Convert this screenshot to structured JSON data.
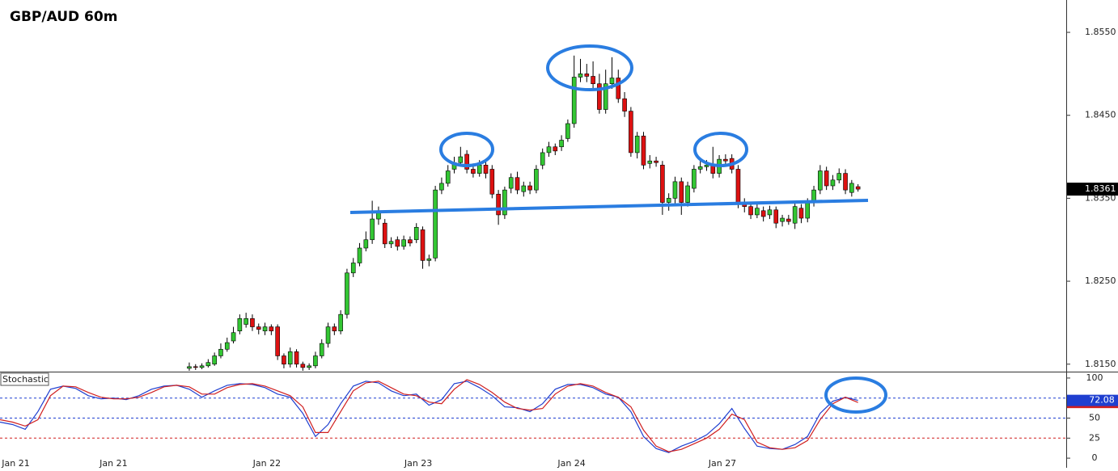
{
  "chart_data": [
    {
      "type": "candlestick",
      "title": "GBP/AUD 60m",
      "xlim": [
        0,
        169
      ],
      "ylim": [
        1.8141,
        1.8589
      ],
      "yticks": [
        {
          "value": 1.855,
          "label": "1.8550"
        },
        {
          "value": 1.845,
          "label": "1.8450"
        },
        {
          "value": 1.835,
          "label": "1.8350"
        },
        {
          "value": 1.825,
          "label": "1.8250"
        },
        {
          "value": 1.815,
          "label": "1.8150"
        }
      ],
      "up_color": "#33c633",
      "down_color": "#dd1111",
      "outline_color": "#000000",
      "last_price": 1.8361,
      "x": [
        30,
        31,
        32,
        33,
        34,
        35,
        36,
        37,
        38,
        39,
        40,
        41,
        42,
        43,
        44,
        45,
        46,
        47,
        48,
        49,
        50,
        51,
        52,
        53,
        54,
        55,
        56,
        57,
        58,
        59,
        60,
        61,
        62,
        63,
        64,
        65,
        66,
        67,
        68,
        69,
        70,
        71,
        72,
        73,
        74,
        75,
        76,
        77,
        78,
        79,
        80,
        81,
        82,
        83,
        84,
        85,
        86,
        87,
        88,
        89,
        90,
        91,
        92,
        93,
        94,
        95,
        96,
        97,
        98,
        99,
        100,
        101,
        102,
        103,
        104,
        105,
        106,
        107,
        108,
        109,
        110,
        111,
        112,
        113,
        114,
        115,
        116,
        117,
        118,
        119,
        120,
        121,
        122,
        123,
        124,
        125,
        126,
        127,
        128,
        129,
        130,
        131,
        132,
        133,
        134,
        135,
        136
      ],
      "open": [
        1.8145,
        1.8147,
        1.8146,
        1.8148,
        1.815,
        1.816,
        1.8168,
        1.8178,
        1.819,
        1.8198,
        1.8205,
        1.8195,
        1.819,
        1.8195,
        1.8195,
        1.816,
        1.815,
        1.8165,
        1.815,
        1.8146,
        1.8148,
        1.816,
        1.8175,
        1.8195,
        1.819,
        1.821,
        1.826,
        1.8272,
        1.829,
        1.83,
        1.8325,
        1.832,
        1.8295,
        1.83,
        1.8292,
        1.83,
        1.83,
        1.8312,
        1.8275,
        1.8278,
        1.836,
        1.8368,
        1.8385,
        1.8393,
        1.8403,
        1.8385,
        1.838,
        1.839,
        1.8385,
        1.8355,
        1.833,
        1.8362,
        1.8375,
        1.8358,
        1.8365,
        1.836,
        1.839,
        1.8405,
        1.8412,
        1.8412,
        1.8422,
        1.844,
        1.8496,
        1.85,
        1.8497,
        1.8488,
        1.8457,
        1.8488,
        1.8495,
        1.847,
        1.8455,
        1.8405,
        1.8425,
        1.8392,
        1.8395,
        1.839,
        1.8345,
        1.835,
        1.837,
        1.8345,
        1.8362,
        1.8385,
        1.8388,
        1.839,
        1.838,
        1.8397,
        1.8398,
        1.8385,
        1.8345,
        1.834,
        1.833,
        1.8335,
        1.833,
        1.8336,
        1.8322,
        1.8325,
        1.832,
        1.8338,
        1.8326,
        1.8345,
        1.836,
        1.8383,
        1.8365,
        1.8372,
        1.838,
        1.8357,
        1.8364
      ],
      "high": [
        1.8152,
        1.815,
        1.8151,
        1.8156,
        1.8164,
        1.8175,
        1.8182,
        1.8195,
        1.821,
        1.8212,
        1.821,
        1.8199,
        1.82,
        1.8198,
        1.8198,
        1.8163,
        1.817,
        1.8168,
        1.8153,
        1.8151,
        1.8165,
        1.818,
        1.82,
        1.8199,
        1.8215,
        1.8265,
        1.8278,
        1.8296,
        1.831,
        1.8347,
        1.834,
        1.8325,
        1.8303,
        1.8304,
        1.8305,
        1.8304,
        1.832,
        1.8316,
        1.8282,
        1.8365,
        1.8375,
        1.839,
        1.84,
        1.8412,
        1.8408,
        1.8392,
        1.8396,
        1.8395,
        1.839,
        1.836,
        1.8364,
        1.838,
        1.8382,
        1.837,
        1.837,
        1.839,
        1.841,
        1.8418,
        1.8416,
        1.8426,
        1.8445,
        1.8522,
        1.8518,
        1.8512,
        1.8515,
        1.85,
        1.8505,
        1.852,
        1.8505,
        1.8478,
        1.846,
        1.843,
        1.843,
        1.8402,
        1.84,
        1.8395,
        1.8356,
        1.8376,
        1.8375,
        1.837,
        1.839,
        1.8395,
        1.8396,
        1.8412,
        1.8402,
        1.8403,
        1.8403,
        1.839,
        1.835,
        1.8345,
        1.8343,
        1.834,
        1.8341,
        1.834,
        1.833,
        1.833,
        1.8345,
        1.8343,
        1.835,
        1.8365,
        1.839,
        1.8388,
        1.8378,
        1.8386,
        1.8385,
        1.8372,
        1.8367
      ],
      "low": [
        1.8142,
        1.8143,
        1.8144,
        1.8146,
        1.8148,
        1.8157,
        1.8165,
        1.8175,
        1.8186,
        1.8194,
        1.819,
        1.8186,
        1.8185,
        1.8185,
        1.8155,
        1.8145,
        1.8146,
        1.8146,
        1.8142,
        1.8143,
        1.8145,
        1.8157,
        1.817,
        1.8185,
        1.8186,
        1.8205,
        1.8255,
        1.8268,
        1.8286,
        1.8295,
        1.8318,
        1.829,
        1.829,
        1.8287,
        1.8288,
        1.8292,
        1.8296,
        1.8265,
        1.8268,
        1.8274,
        1.8355,
        1.8364,
        1.838,
        1.8388,
        1.838,
        1.8375,
        1.8376,
        1.8374,
        1.835,
        1.8318,
        1.8325,
        1.8356,
        1.8355,
        1.8352,
        1.8355,
        1.8356,
        1.8385,
        1.84,
        1.8402,
        1.8407,
        1.8418,
        1.8435,
        1.849,
        1.849,
        1.8482,
        1.8452,
        1.8452,
        1.8482,
        1.8465,
        1.8448,
        1.84,
        1.8398,
        1.8385,
        1.8386,
        1.8388,
        1.833,
        1.8335,
        1.8344,
        1.833,
        1.834,
        1.8357,
        1.838,
        1.8383,
        1.8374,
        1.8375,
        1.8388,
        1.838,
        1.8338,
        1.8333,
        1.8325,
        1.8326,
        1.8322,
        1.8325,
        1.8314,
        1.8316,
        1.8318,
        1.8313,
        1.832,
        1.8321,
        1.834,
        1.8355,
        1.836,
        1.836,
        1.8368,
        1.8355,
        1.8352,
        1.8358
      ],
      "close": [
        1.8147,
        1.8146,
        1.8148,
        1.8152,
        1.816,
        1.8168,
        1.8176,
        1.8188,
        1.8205,
        1.8205,
        1.8195,
        1.8192,
        1.8195,
        1.819,
        1.816,
        1.815,
        1.8165,
        1.815,
        1.8146,
        1.8148,
        1.816,
        1.8175,
        1.8195,
        1.819,
        1.821,
        1.826,
        1.8272,
        1.829,
        1.83,
        1.8325,
        1.8335,
        1.8295,
        1.8298,
        1.8292,
        1.83,
        1.8296,
        1.8315,
        1.8275,
        1.8277,
        1.836,
        1.8368,
        1.8383,
        1.8393,
        1.84,
        1.8385,
        1.838,
        1.839,
        1.838,
        1.8355,
        1.833,
        1.836,
        1.8375,
        1.836,
        1.8365,
        1.836,
        1.8385,
        1.8405,
        1.8412,
        1.8407,
        1.842,
        1.844,
        1.8496,
        1.85,
        1.8497,
        1.8488,
        1.8457,
        1.8488,
        1.8495,
        1.847,
        1.8455,
        1.8405,
        1.8425,
        1.839,
        1.8395,
        1.8393,
        1.8345,
        1.835,
        1.837,
        1.8345,
        1.8365,
        1.8385,
        1.8388,
        1.839,
        1.838,
        1.8397,
        1.8395,
        1.8385,
        1.8345,
        1.834,
        1.833,
        1.8338,
        1.8328,
        1.8336,
        1.832,
        1.8326,
        1.8322,
        1.834,
        1.8326,
        1.8345,
        1.836,
        1.8383,
        1.8365,
        1.8372,
        1.838,
        1.836,
        1.8368,
        1.8361
      ]
    },
    {
      "type": "line",
      "title": "Stochastic",
      "xlim": [
        0,
        169
      ],
      "ylim": [
        -12,
        108
      ],
      "yticks": [
        100,
        50,
        25,
        0
      ],
      "levels": [
        75,
        50,
        25
      ],
      "level_colors": [
        "#1f3fd0",
        "#1f3fd0",
        "#d01f1f"
      ],
      "xticks": [
        {
          "value": 2.5,
          "label": "Jan 21"
        },
        {
          "value": 18,
          "label": "Jan 21"
        },
        {
          "value": 42.3,
          "label": "Jan 22"
        },
        {
          "value": 66.3,
          "label": "Jan 23"
        },
        {
          "value": 90.6,
          "label": "Jan 24"
        },
        {
          "value": 114.5,
          "label": "Jan 27"
        }
      ],
      "x": [
        0,
        2,
        4,
        6,
        8,
        10,
        12,
        14,
        16,
        18,
        20,
        22,
        24,
        26,
        28,
        30,
        32,
        34,
        36,
        38,
        40,
        42,
        44,
        46,
        48,
        50,
        52,
        54,
        56,
        58,
        60,
        62,
        64,
        66,
        68,
        70,
        72,
        74,
        76,
        78,
        80,
        82,
        84,
        86,
        88,
        90,
        92,
        94,
        96,
        98,
        100,
        102,
        104,
        106,
        108,
        110,
        112,
        114,
        116,
        118,
        120,
        122,
        124,
        126,
        128,
        130,
        132,
        134,
        136
      ],
      "series": [
        {
          "color": "#1f3fd0",
          "values": [
            45,
            42,
            36,
            58,
            86,
            90,
            87,
            78,
            74,
            75,
            73,
            78,
            86,
            90,
            91,
            86,
            76,
            84,
            91,
            93,
            92,
            88,
            80,
            76,
            56,
            27,
            42,
            68,
            90,
            96,
            94,
            84,
            78,
            80,
            66,
            73,
            93,
            96,
            88,
            78,
            64,
            63,
            58,
            68,
            86,
            92,
            92,
            88,
            80,
            76,
            58,
            27,
            12,
            7,
            15,
            21,
            29,
            43,
            62,
            37,
            15,
            12,
            11,
            17,
            27,
            56,
            71,
            76,
            72.08
          ]
        },
        {
          "color": "#d01f1f",
          "values": [
            48,
            45,
            40,
            48,
            78,
            90,
            89,
            82,
            76,
            74,
            74,
            76,
            82,
            89,
            91,
            89,
            80,
            80,
            88,
            92,
            93,
            90,
            84,
            78,
            64,
            32,
            32,
            58,
            84,
            94,
            96,
            88,
            80,
            78,
            70,
            68,
            86,
            98,
            92,
            82,
            70,
            62,
            60,
            62,
            80,
            90,
            93,
            90,
            82,
            76,
            64,
            35,
            15,
            8,
            11,
            18,
            25,
            36,
            55,
            48,
            20,
            13,
            11,
            13,
            22,
            48,
            68,
            76,
            69.52
          ]
        }
      ]
    }
  ]
}
